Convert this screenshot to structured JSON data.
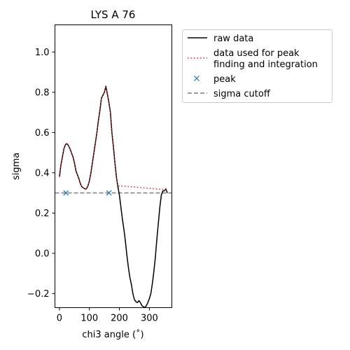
{
  "chart_data": {
    "type": "line",
    "title": "LYS A  76",
    "xlabel": "chi3  angle (˚)",
    "ylabel": "sigma",
    "xlim": [
      -15,
      375
    ],
    "ylim": [
      -0.27,
      1.135
    ],
    "xticks": [
      0,
      100,
      200,
      300
    ],
    "yticks": [
      -0.2,
      0.0,
      0.2,
      0.4,
      0.6,
      0.8,
      1.0
    ],
    "xtick_labels": [
      "0",
      "100",
      "200",
      "300"
    ],
    "ytick_labels": [
      "−0.2",
      "0.0",
      "0.2",
      "0.4",
      "0.6",
      "0.8",
      "1.0"
    ],
    "grid": false,
    "legend_position": "outside-right",
    "series": [
      {
        "name": "raw data",
        "style": "solid",
        "color": "#000000",
        "x": [
          0,
          5,
          10,
          15,
          20,
          25,
          30,
          35,
          40,
          45,
          50,
          55,
          60,
          65,
          70,
          75,
          80,
          85,
          90,
          95,
          100,
          105,
          110,
          115,
          120,
          125,
          130,
          135,
          140,
          145,
          150,
          155,
          160,
          165,
          170,
          175,
          180,
          185,
          190,
          195,
          200,
          205,
          210,
          215,
          220,
          225,
          230,
          235,
          240,
          245,
          250,
          255,
          260,
          265,
          270,
          275,
          280,
          285,
          290,
          295,
          300,
          305,
          310,
          315,
          320,
          325,
          330,
          335,
          340,
          345,
          350,
          355,
          360
        ],
        "y": [
          0.38,
          0.44,
          0.48,
          0.52,
          0.54,
          0.545,
          0.535,
          0.52,
          0.5,
          0.48,
          0.45,
          0.41,
          0.39,
          0.37,
          0.345,
          0.33,
          0.325,
          0.32,
          0.32,
          0.335,
          0.36,
          0.4,
          0.45,
          0.5,
          0.55,
          0.6,
          0.66,
          0.71,
          0.77,
          0.785,
          0.8,
          0.83,
          0.79,
          0.75,
          0.7,
          0.6,
          0.53,
          0.45,
          0.38,
          0.33,
          0.29,
          0.23,
          0.17,
          0.12,
          0.06,
          -0.01,
          -0.07,
          -0.12,
          -0.155,
          -0.2,
          -0.23,
          -0.24,
          -0.245,
          -0.235,
          -0.245,
          -0.26,
          -0.265,
          -0.27,
          -0.26,
          -0.245,
          -0.225,
          -0.2,
          -0.15,
          -0.09,
          -0.02,
          0.07,
          0.15,
          0.23,
          0.29,
          0.31,
          0.31,
          0.32,
          0.3
        ]
      },
      {
        "name": "data used for peak\n finding and integration",
        "style": "dotted",
        "color": "#e41a1c",
        "x": [
          0,
          5,
          10,
          15,
          20,
          25,
          30,
          35,
          40,
          45,
          50,
          55,
          60,
          65,
          70,
          75,
          80,
          85,
          90,
          95,
          100,
          105,
          110,
          115,
          120,
          125,
          130,
          135,
          140,
          145,
          150,
          155,
          160,
          165,
          170,
          175,
          180,
          185,
          190,
          195,
          200,
          205,
          360
        ],
        "y": [
          0.38,
          0.44,
          0.48,
          0.52,
          0.54,
          0.545,
          0.535,
          0.52,
          0.5,
          0.48,
          0.45,
          0.41,
          0.39,
          0.37,
          0.345,
          0.33,
          0.325,
          0.32,
          0.32,
          0.335,
          0.36,
          0.4,
          0.45,
          0.5,
          0.55,
          0.6,
          0.66,
          0.71,
          0.77,
          0.785,
          0.8,
          0.83,
          0.79,
          0.75,
          0.7,
          0.6,
          0.53,
          0.45,
          0.38,
          0.33,
          0.335,
          0.335,
          0.315
        ]
      },
      {
        "name": "peak",
        "style": "marker-x",
        "color": "#1f77b4",
        "x": [
          22,
          165
        ],
        "y": [
          0.3,
          0.3
        ]
      },
      {
        "name": "sigma cutoff",
        "style": "dashed",
        "color": "#7f7f7f",
        "x": [
          -15,
          375
        ],
        "y": [
          0.3,
          0.3
        ]
      }
    ]
  }
}
